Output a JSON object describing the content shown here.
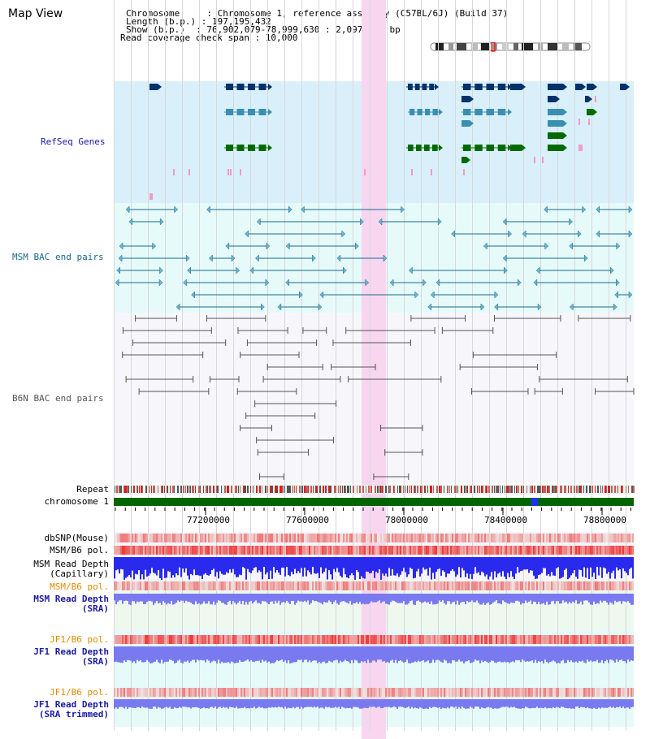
{
  "title": "Map View",
  "info": {
    "chromosome": "Chromosome     : Chromosome 1, reference assembly (C57BL/6J) (Build 37)",
    "length": "Length (b.p.) : 197,195,432",
    "show": "Show (b.p.)  : 76,902,079-78,999,630 : 2,097,552 bp",
    "span": "Read coverage check span : 10,000"
  },
  "tracks": {
    "refseq": "RefSeq Genes",
    "msm_bac": "MSM BAC end pairs",
    "b6n_bac": "B6N BAC end pairs",
    "repeat": "Repeat",
    "chromosome": "chromosome 1",
    "dbsnp": "dbSNP(Mouse)",
    "msm_b6_pol": "MSM/B6 pol.",
    "msm_depth_cap_1": "MSM Read Depth",
    "msm_depth_cap_2": "(Capillary)",
    "msm_b6_pol2": "MSM/B6 pol.",
    "msm_depth_sra_1": "MSM Read Depth",
    "msm_depth_sra_2": "(SRA)",
    "jf1_b6_pol": "JF1/B6 pol.",
    "jf1_depth_sra_1": "JF1 Read Depth",
    "jf1_depth_sra_2": "(SRA)",
    "jf1_b6_pol2": "JF1/B6 pol.",
    "jf1_depth_trim_1": "JF1 Read Depth",
    "jf1_depth_trim_2": "(SRA trimmed)"
  },
  "axis": {
    "ticks": [
      "77200000",
      "77600000",
      "78000000",
      "78400000",
      "78800000"
    ]
  },
  "colors": {
    "refseq_bg": "#d9f0fa",
    "msm_bg": "#e6fafa",
    "b6n_bg": "#f5f5fb",
    "highlight": "#f8d6f0",
    "chrom_green": "#006400",
    "gene_dark": "#00336a",
    "gene_mid": "#3a8fb0",
    "gene_green": "#006a00",
    "msm_line": "#1a6a8a",
    "b6n_line": "#555555",
    "depth_blue": "#2a2aee",
    "depth_mid": "#7a7af0",
    "pol_red": "#ee4444"
  }
}
